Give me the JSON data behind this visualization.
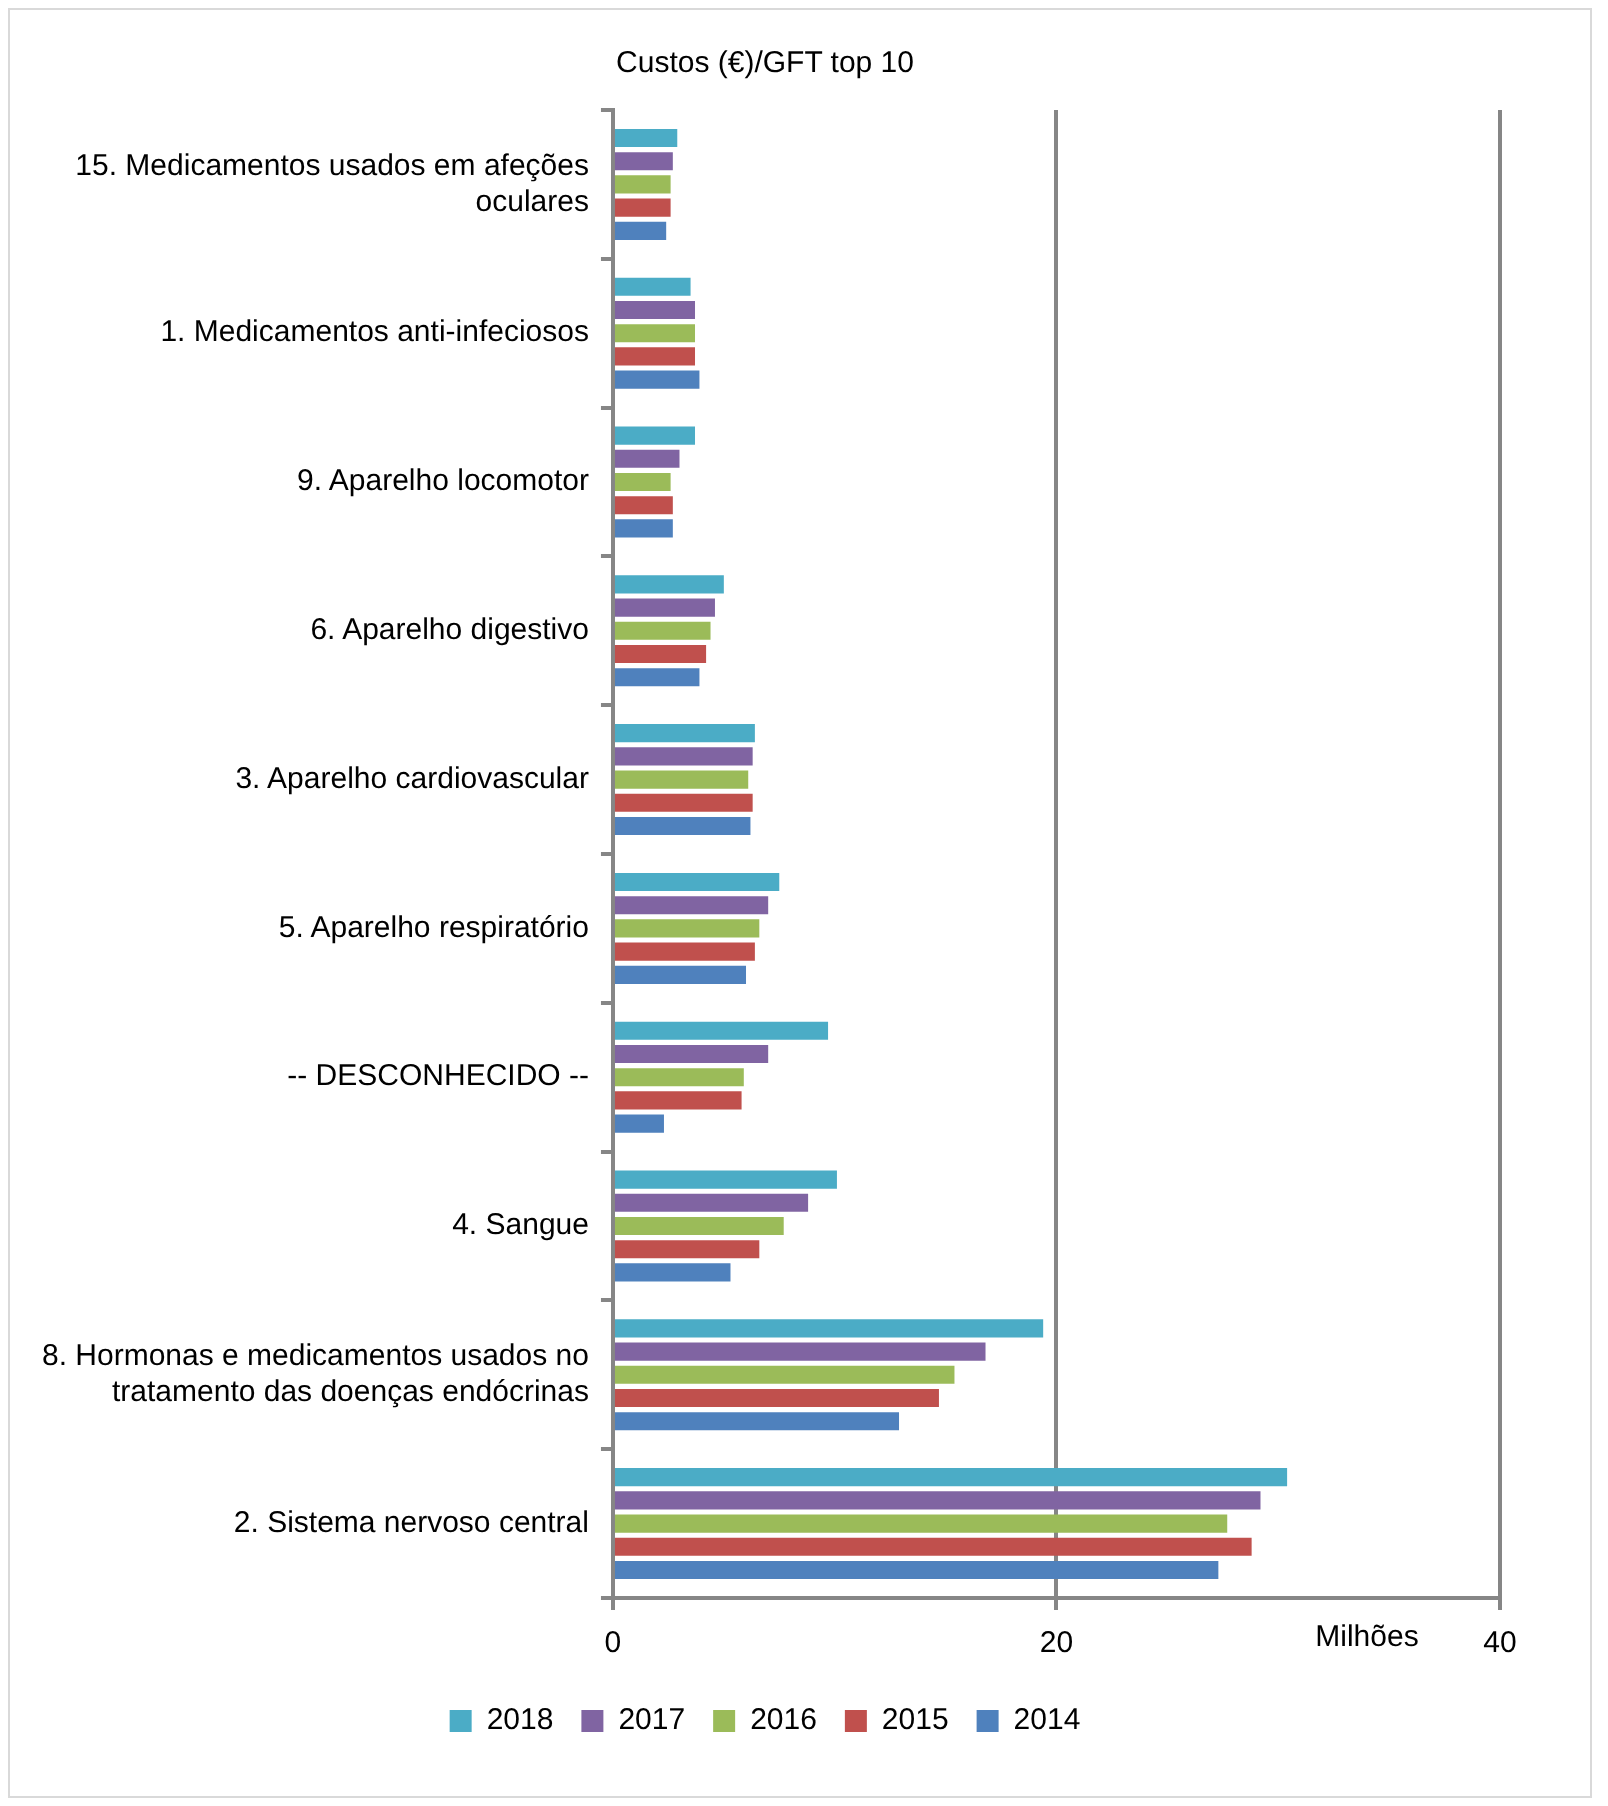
{
  "chart_data": {
    "type": "bar",
    "orientation": "horizontal",
    "title": "Custos (€)/GFT top 10",
    "xlabel": "Milhões",
    "categories": [
      "15. Medicamentos usados em afeções oculares",
      "1. Medicamentos anti-infeciosos",
      "9. Aparelho locomotor",
      "6. Aparelho digestivo",
      "3. Aparelho cardiovascular",
      "5. Aparelho respiratório",
      "-- DESCONHECIDO --",
      "4. Sangue",
      "8. Hormonas e medicamentos usados no tratamento das doenças endócrinas",
      "2. Sistema nervoso central"
    ],
    "series": [
      {
        "name": "2018",
        "color": "#4bacc6",
        "values": [
          2.9,
          3.5,
          3.7,
          5.0,
          6.4,
          7.5,
          9.7,
          10.1,
          19.4,
          30.4
        ]
      },
      {
        "name": "2017",
        "color": "#8064a2",
        "values": [
          2.7,
          3.7,
          3.0,
          4.6,
          6.3,
          7.0,
          7.0,
          8.8,
          16.8,
          29.2
        ]
      },
      {
        "name": "2016",
        "color": "#9bbb59",
        "values": [
          2.6,
          3.7,
          2.6,
          4.4,
          6.1,
          6.6,
          5.9,
          7.7,
          15.4,
          27.7
        ]
      },
      {
        "name": "2015",
        "color": "#c0504d",
        "values": [
          2.6,
          3.7,
          2.7,
          4.2,
          6.3,
          6.4,
          5.8,
          6.6,
          14.7,
          28.8
        ]
      },
      {
        "name": "2014",
        "color": "#4f81bd",
        "values": [
          2.4,
          3.9,
          2.7,
          3.9,
          6.2,
          6.0,
          2.3,
          5.3,
          12.9,
          27.3
        ]
      }
    ],
    "xlim": [
      0,
      40
    ],
    "xticks": [
      0,
      20,
      40
    ],
    "grid": "x",
    "legend": "bottom"
  }
}
